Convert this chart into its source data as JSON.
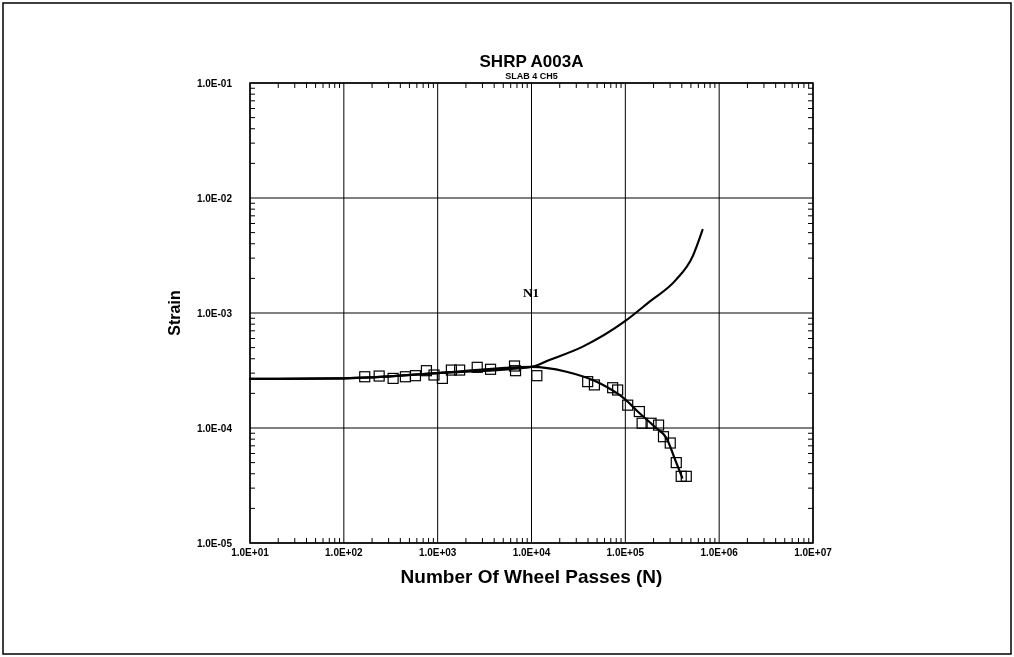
{
  "chart_data": {
    "type": "scatter",
    "title": "SHRP A003A",
    "subtitle": "SLAB 4 CH5",
    "xlabel": "Number Of Wheel Passes (N)",
    "ylabel": "Strain",
    "log": "xy",
    "grid": true,
    "marker": "square",
    "xlim": [
      10,
      10000000
    ],
    "ylim": [
      1e-05,
      0.1
    ],
    "xticks": [
      {
        "value": 10,
        "label": "1.0E+01"
      },
      {
        "value": 100,
        "label": "1.0E+02"
      },
      {
        "value": 1000,
        "label": "1.0E+03"
      },
      {
        "value": 10000,
        "label": "1.0E+04"
      },
      {
        "value": 100000,
        "label": "1.0E+05"
      },
      {
        "value": 1000000,
        "label": "1.0E+06"
      },
      {
        "value": 10000000,
        "label": "1.0E+07"
      }
    ],
    "yticks": [
      {
        "value": 1e-05,
        "label": "1.0E-05"
      },
      {
        "value": 0.0001,
        "label": "1.0E-04"
      },
      {
        "value": 0.001,
        "label": "1.0E-03"
      },
      {
        "value": 0.01,
        "label": "1.0E-02"
      },
      {
        "value": 0.1,
        "label": "1.0E-01"
      }
    ],
    "annotations": [
      "N1"
    ],
    "series": [
      {
        "color": "#000000",
        "x": [
          167,
          238,
          335,
          453,
          580,
          759,
          914,
          1122,
          1400,
          1715,
          2640,
          3660,
          6590,
          6760,
          11400,
          39700,
          46800,
          73300,
          82800,
          106000,
          141000,
          151000,
          188000,
          226000,
          255000,
          301000,
          349000,
          394000,
          446000
        ],
        "values": [
          0.000279,
          0.000283,
          0.00027,
          0.000279,
          0.000285,
          0.000315,
          0.000289,
          0.00027,
          0.000319,
          0.000319,
          0.000337,
          0.000324,
          0.000346,
          0.000315,
          0.000285,
          0.000253,
          0.000237,
          0.000224,
          0.000214,
          0.000158,
          0.000139,
          0.00011,
          0.00011,
          0.000106,
          8.4e-05,
          7.4e-05,
          5e-05,
          3.8e-05,
          3.8e-05
        ]
      },
      {
        "type": "line",
        "marker": "none",
        "color": "#000000",
        "line_style": "solid",
        "x": [
          10,
          100,
          1000,
          10000,
          23000,
          52800,
          97500,
          141000,
          204000,
          280000,
          339000,
          404000
        ],
        "values": [
          0.000267,
          0.00027,
          0.0003,
          0.00034,
          0.00031,
          0.000246,
          0.00018,
          0.000135,
          0.000103,
          7.9e-05,
          5.3e-05,
          3.7e-05
        ]
      },
      {
        "type": "line",
        "marker": "none",
        "color": "#000000",
        "line_style": "solid",
        "x": [
          10,
          100,
          1000,
          10000,
          15500,
          35200,
          97500,
          180000,
          346000,
          520000,
          664000
        ],
        "values": [
          0.000267,
          0.00027,
          0.0003,
          0.00034,
          0.00039,
          0.00051,
          0.00084,
          0.00125,
          0.00194,
          0.00309,
          0.00527
        ]
      }
    ]
  }
}
